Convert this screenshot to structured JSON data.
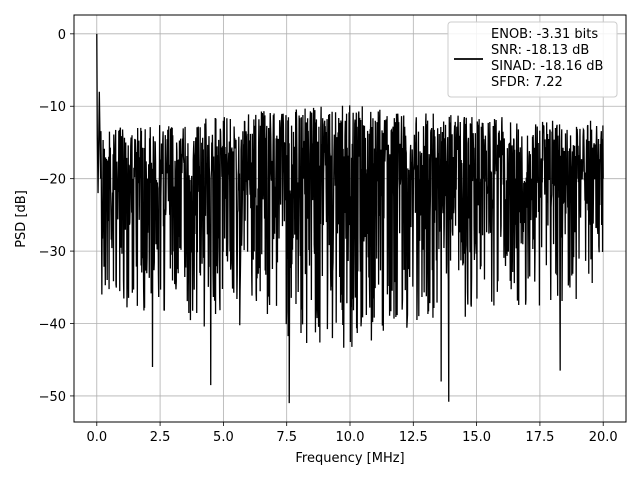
{
  "chart_data": {
    "type": "line",
    "xlabel": "Frequency [MHz]",
    "ylabel": "PSD [dB]",
    "xlim": [
      -0.9,
      20.9
    ],
    "ylim": [
      -53.6,
      2.6
    ],
    "xticks": [
      0.0,
      2.5,
      5.0,
      7.5,
      10.0,
      12.5,
      15.0,
      17.5,
      20.0
    ],
    "xtick_labels": [
      "0.0",
      "2.5",
      "5.0",
      "7.5",
      "10.0",
      "12.5",
      "15.0",
      "17.5",
      "20.0"
    ],
    "yticks": [
      0,
      -10,
      -20,
      -30,
      -40,
      -50
    ],
    "ytick_labels": [
      "0",
      "−10",
      "−20",
      "−30",
      "−40",
      "−50"
    ],
    "grid": true,
    "legend": {
      "placement": "upper-right",
      "lines": [
        "ENOB: -3.31 bits",
        "SNR: -18.13 dB",
        "SINAD: -18.16 dB",
        "SFDR: 7.22"
      ]
    },
    "series": [
      {
        "color": "#000000",
        "x": [
          0.0,
          0.02,
          0.05,
          0.1,
          0.15,
          0.2,
          0.5,
          1.0,
          1.5,
          2.0,
          2.2,
          3.0,
          4.0,
          4.5,
          5.0,
          6.0,
          7.0,
          7.6,
          8.0,
          9.0,
          10.0,
          11.0,
          12.0,
          13.0,
          13.6,
          13.9,
          14.5,
          15.0,
          16.0,
          17.0,
          18.0,
          18.3,
          19.0,
          19.5,
          20.0
        ],
        "y": [
          0.0,
          -14.0,
          -22.0,
          -8.0,
          -20.0,
          -36.0,
          -13.5,
          -20.0,
          -14.5,
          -20.0,
          -46.0,
          -14.0,
          -20.0,
          -48.5,
          -12.0,
          -20.0,
          -11.0,
          -51.0,
          -20.0,
          -12.0,
          -20.0,
          -12.0,
          -20.0,
          -11.0,
          -48.0,
          -50.8,
          -12.0,
          -20.0,
          -11.5,
          -20.0,
          -12.0,
          -46.5,
          -20.0,
          -12.0,
          -20.0
        ]
      }
    ],
    "noise_band": {
      "x": [
        0.15,
        20.0
      ],
      "center": -20.0,
      "upper_envelope": [
        -13.0,
        -12.0,
        -10.5,
        -9.5,
        -11.0,
        -12.0,
        -12.5
      ],
      "lower_envelope": [
        -37.0,
        -40.0,
        -42.0,
        -44.0,
        -40.0,
        -38.0,
        -37.0
      ]
    }
  }
}
